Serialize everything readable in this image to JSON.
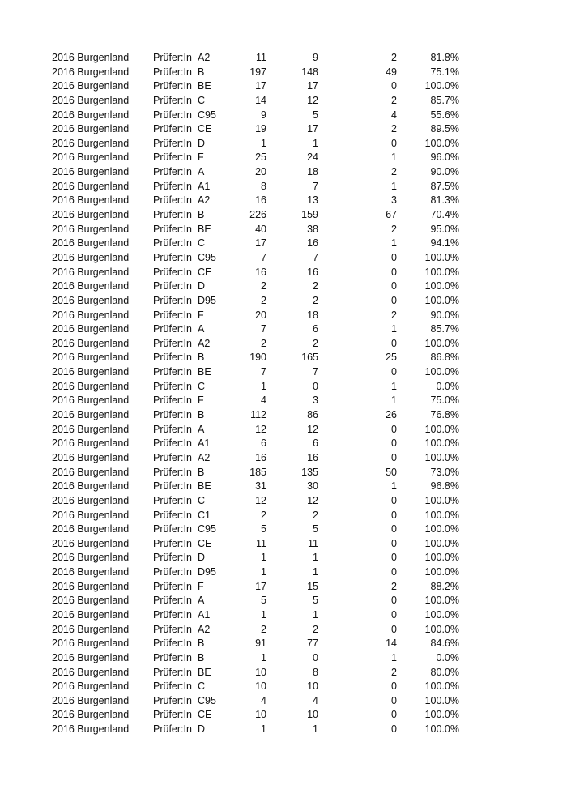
{
  "rows": [
    [
      "2016 Burgenland",
      "Prüfer:In",
      "A2",
      "11",
      "9",
      "2",
      "81.8%"
    ],
    [
      "2016 Burgenland",
      "Prüfer:In",
      "B",
      "197",
      "148",
      "49",
      "75.1%"
    ],
    [
      "2016 Burgenland",
      "Prüfer:In",
      "BE",
      "17",
      "17",
      "0",
      "100.0%"
    ],
    [
      "2016 Burgenland",
      "Prüfer:In",
      "C",
      "14",
      "12",
      "2",
      "85.7%"
    ],
    [
      "2016 Burgenland",
      "Prüfer:In",
      "C95",
      "9",
      "5",
      "4",
      "55.6%"
    ],
    [
      "2016 Burgenland",
      "Prüfer:In",
      "CE",
      "19",
      "17",
      "2",
      "89.5%"
    ],
    [
      "2016 Burgenland",
      "Prüfer:In",
      "D",
      "1",
      "1",
      "0",
      "100.0%"
    ],
    [
      "2016 Burgenland",
      "Prüfer:In",
      "F",
      "25",
      "24",
      "1",
      "96.0%"
    ],
    [
      "2016 Burgenland",
      "Prüfer:In",
      "A",
      "20",
      "18",
      "2",
      "90.0%"
    ],
    [
      "2016 Burgenland",
      "Prüfer:In",
      "A1",
      "8",
      "7",
      "1",
      "87.5%"
    ],
    [
      "2016 Burgenland",
      "Prüfer:In",
      "A2",
      "16",
      "13",
      "3",
      "81.3%"
    ],
    [
      "2016 Burgenland",
      "Prüfer:In",
      "B",
      "226",
      "159",
      "67",
      "70.4%"
    ],
    [
      "2016 Burgenland",
      "Prüfer:In",
      "BE",
      "40",
      "38",
      "2",
      "95.0%"
    ],
    [
      "2016 Burgenland",
      "Prüfer:In",
      "C",
      "17",
      "16",
      "1",
      "94.1%"
    ],
    [
      "2016 Burgenland",
      "Prüfer:In",
      "C95",
      "7",
      "7",
      "0",
      "100.0%"
    ],
    [
      "2016 Burgenland",
      "Prüfer:In",
      "CE",
      "16",
      "16",
      "0",
      "100.0%"
    ],
    [
      "2016 Burgenland",
      "Prüfer:In",
      "D",
      "2",
      "2",
      "0",
      "100.0%"
    ],
    [
      "2016 Burgenland",
      "Prüfer:In",
      "D95",
      "2",
      "2",
      "0",
      "100.0%"
    ],
    [
      "2016 Burgenland",
      "Prüfer:In",
      "F",
      "20",
      "18",
      "2",
      "90.0%"
    ],
    [
      "2016 Burgenland",
      "Prüfer:In",
      "A",
      "7",
      "6",
      "1",
      "85.7%"
    ],
    [
      "2016 Burgenland",
      "Prüfer:In",
      "A2",
      "2",
      "2",
      "0",
      "100.0%"
    ],
    [
      "2016 Burgenland",
      "Prüfer:In",
      "B",
      "190",
      "165",
      "25",
      "86.8%"
    ],
    [
      "2016 Burgenland",
      "Prüfer:In",
      "BE",
      "7",
      "7",
      "0",
      "100.0%"
    ],
    [
      "2016 Burgenland",
      "Prüfer:In",
      "C",
      "1",
      "0",
      "1",
      "0.0%"
    ],
    [
      "2016 Burgenland",
      "Prüfer:In",
      "F",
      "4",
      "3",
      "1",
      "75.0%"
    ],
    [
      "2016 Burgenland",
      "Prüfer:In",
      "B",
      "112",
      "86",
      "26",
      "76.8%"
    ],
    [
      "2016 Burgenland",
      "Prüfer:In",
      "A",
      "12",
      "12",
      "0",
      "100.0%"
    ],
    [
      "2016 Burgenland",
      "Prüfer:In",
      "A1",
      "6",
      "6",
      "0",
      "100.0%"
    ],
    [
      "2016 Burgenland",
      "Prüfer:In",
      "A2",
      "16",
      "16",
      "0",
      "100.0%"
    ],
    [
      "2016 Burgenland",
      "Prüfer:In",
      "B",
      "185",
      "135",
      "50",
      "73.0%"
    ],
    [
      "2016 Burgenland",
      "Prüfer:In",
      "BE",
      "31",
      "30",
      "1",
      "96.8%"
    ],
    [
      "2016 Burgenland",
      "Prüfer:In",
      "C",
      "12",
      "12",
      "0",
      "100.0%"
    ],
    [
      "2016 Burgenland",
      "Prüfer:In",
      "C1",
      "2",
      "2",
      "0",
      "100.0%"
    ],
    [
      "2016 Burgenland",
      "Prüfer:In",
      "C95",
      "5",
      "5",
      "0",
      "100.0%"
    ],
    [
      "2016 Burgenland",
      "Prüfer:In",
      "CE",
      "11",
      "11",
      "0",
      "100.0%"
    ],
    [
      "2016 Burgenland",
      "Prüfer:In",
      "D",
      "1",
      "1",
      "0",
      "100.0%"
    ],
    [
      "2016 Burgenland",
      "Prüfer:In",
      "D95",
      "1",
      "1",
      "0",
      "100.0%"
    ],
    [
      "2016 Burgenland",
      "Prüfer:In",
      "F",
      "17",
      "15",
      "2",
      "88.2%"
    ],
    [
      "2016 Burgenland",
      "Prüfer:In",
      "A",
      "5",
      "5",
      "0",
      "100.0%"
    ],
    [
      "2016 Burgenland",
      "Prüfer:In",
      "A1",
      "1",
      "1",
      "0",
      "100.0%"
    ],
    [
      "2016 Burgenland",
      "Prüfer:In",
      "A2",
      "2",
      "2",
      "0",
      "100.0%"
    ],
    [
      "2016 Burgenland",
      "Prüfer:In",
      "B",
      "91",
      "77",
      "14",
      "84.6%"
    ],
    [
      "2016 Burgenland",
      "Prüfer:In",
      "B",
      "1",
      "0",
      "1",
      "0.0%"
    ],
    [
      "2016 Burgenland",
      "Prüfer:In",
      "BE",
      "10",
      "8",
      "2",
      "80.0%"
    ],
    [
      "2016 Burgenland",
      "Prüfer:In",
      "C",
      "10",
      "10",
      "0",
      "100.0%"
    ],
    [
      "2016 Burgenland",
      "Prüfer:In",
      "C95",
      "4",
      "4",
      "0",
      "100.0%"
    ],
    [
      "2016 Burgenland",
      "Prüfer:In",
      "CE",
      "10",
      "10",
      "0",
      "100.0%"
    ],
    [
      "2016 Burgenland",
      "Prüfer:In",
      "D",
      "1",
      "1",
      "0",
      "100.0%"
    ]
  ]
}
